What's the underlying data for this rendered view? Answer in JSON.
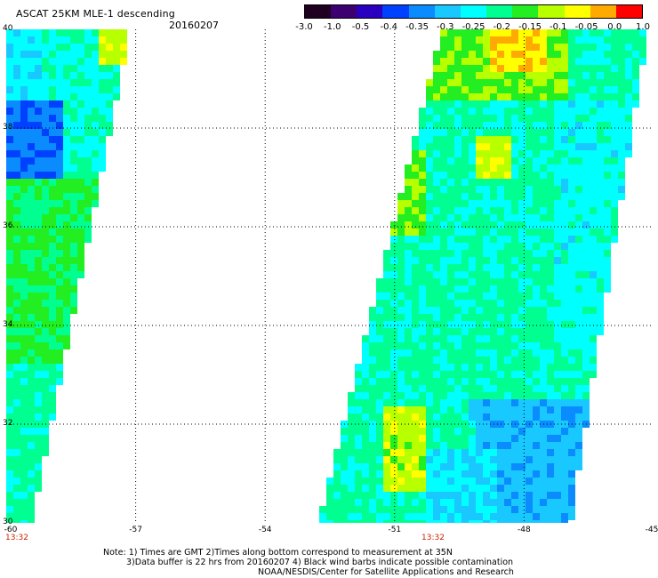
{
  "title": "ASCAT 25KM MLE-1 descending",
  "date": "20160207",
  "colorbar": {
    "labels": [
      "-3.0",
      "-1.0",
      "-0.5",
      "-0.4",
      "-0.35",
      "-0.3",
      "-0.25",
      "-0.2",
      "-0.15",
      "-0.1",
      "-0.05",
      "0.0",
      "1.0"
    ],
    "colors": [
      "#200020",
      "#3c0070",
      "#2a00c0",
      "#0040ff",
      "#0a8cff",
      "#19c8ff",
      "#00ffff",
      "#00ff90",
      "#22ee22",
      "#b8ff00",
      "#ffff00",
      "#ffaa00",
      "#ff0000"
    ]
  },
  "map": {
    "lat_ticks": [
      "40",
      "38",
      "36",
      "34",
      "32",
      "30"
    ],
    "lon_ticks": [
      "-60",
      "-57",
      "-54",
      "-51",
      "-48",
      "-45"
    ],
    "lat_range": [
      30,
      40
    ],
    "lon_range": [
      -60,
      -45
    ],
    "grid": true,
    "swaths": [
      {
        "times": [
          "13:32"
        ],
        "lon_at_time": [
          -60
        ],
        "lon_top_edges": [
          -60,
          -57.2
        ],
        "lon_bottom_edges": [
          -60,
          -59.5
        ]
      },
      {
        "times": [
          "13:32"
        ],
        "lon_at_time": [
          -51
        ],
        "lon_top_edges": [
          -49.8,
          -45.2
        ],
        "lon_bottom_edges": [
          -52.7,
          -47.0
        ]
      }
    ]
  },
  "notes": {
    "line1": "Note: 1) Times are GMT 2)Times along bottom correspond to measurement at 35N",
    "line2": "3)Data buffer is 22 hrs from 20160207 4) Black wind barbs indicate possible contamination",
    "line3": "NOAA/NESDIS/Center for Satellite Applications and Research"
  }
}
